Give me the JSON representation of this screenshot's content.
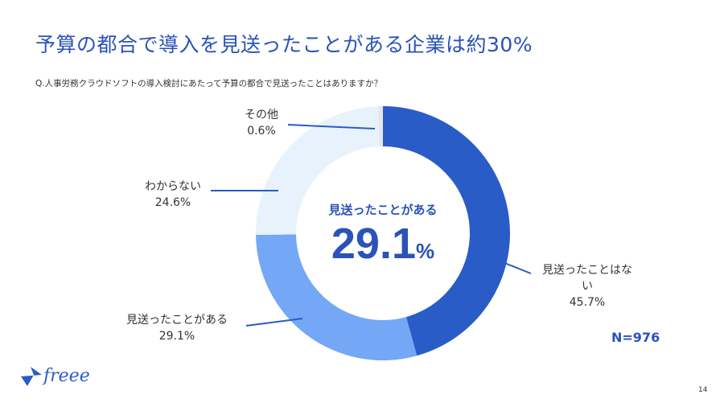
{
  "title": "予算の都合で導入を見送ったことがある企業は約30%",
  "question": "Q.人事労務クラウドソフトの導入検討にあたって予算の都合で見送ったことはありますか？",
  "center": {
    "label": "見送ったことがある",
    "value": "29.1",
    "unit": "%"
  },
  "sample": "N=976",
  "page_number": "14",
  "logo": "freee",
  "chart_data": {
    "type": "pie",
    "variant": "donut",
    "slices": [
      {
        "label": "見送ったことはない",
        "value": 45.7,
        "display": "45.7%",
        "color": "#2a5cc8"
      },
      {
        "label": "見送ったことがある",
        "value": 29.1,
        "display": "29.1%",
        "color": "#74a7f6"
      },
      {
        "label": "わからない",
        "value": 24.6,
        "display": "24.6%",
        "color": "#e8f2fd"
      },
      {
        "label": "その他",
        "value": 0.6,
        "display": "0.6%",
        "color": "#e6e6e6"
      }
    ]
  }
}
